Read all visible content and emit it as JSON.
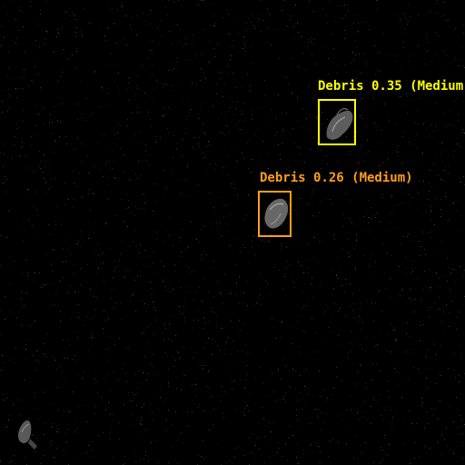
{
  "detections": [
    {
      "label": "Debris 0.35 (Medium)",
      "color": "#FFFF00"
    },
    {
      "label": "Debris 0.26 (Medium)",
      "color": "#FF9F1A"
    }
  ],
  "scene": {
    "background": "#000000",
    "object_name": "debris"
  }
}
